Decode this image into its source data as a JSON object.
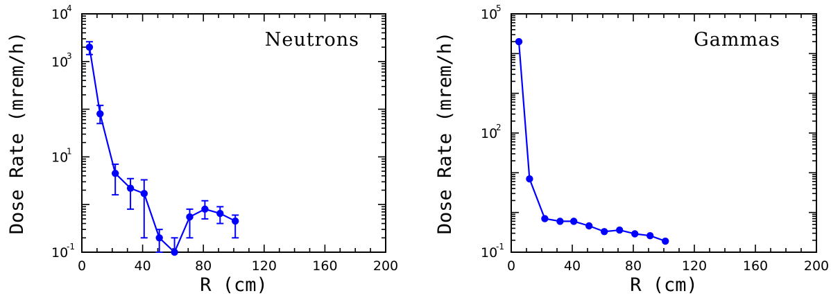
{
  "chart_data": [
    {
      "type": "line",
      "title": "Neutrons",
      "xlabel": "R (cm)",
      "ylabel": "Dose Rate (mrem/h)",
      "xlim": [
        0,
        200
      ],
      "ylim": [
        0.1,
        10000
      ],
      "yscale": "log",
      "x_ticks": [
        "0",
        "40",
        "80",
        "120",
        "160",
        "200"
      ],
      "y_ticks": [
        {
          "base": "10",
          "exp": "-1"
        },
        {
          "base": "10",
          "exp": "1"
        },
        {
          "base": "10",
          "exp": "3"
        },
        {
          "base": "10",
          "exp": "4"
        }
      ],
      "color": "#0000ff",
      "grid": false,
      "series": [
        {
          "x": [
            5,
            12,
            22,
            32,
            41,
            51,
            61,
            71,
            81,
            91,
            101
          ],
          "y": [
            2000,
            80,
            4.5,
            2.2,
            1.7,
            0.2,
            0.1,
            0.55,
            0.8,
            0.65,
            0.45
          ],
          "err_low": [
            1400,
            50,
            1.6,
            0.8,
            0.2,
            0.1,
            0.1,
            0.2,
            0.5,
            0.4,
            0.2
          ],
          "err_high": [
            2600,
            120,
            7.0,
            3.5,
            3.3,
            0.3,
            0.2,
            0.8,
            1.2,
            0.9,
            0.6
          ]
        }
      ]
    },
    {
      "type": "line",
      "title": "Gammas",
      "xlabel": "R (cm)",
      "ylabel": "Dose Rate (mrem/h)",
      "xlim": [
        0,
        200
      ],
      "ylim": [
        0.1,
        100000
      ],
      "yscale": "log",
      "x_ticks": [
        "0",
        "40",
        "80",
        "120",
        "160",
        "200"
      ],
      "y_ticks": [
        {
          "base": "10",
          "exp": "-1"
        },
        {
          "base": "10",
          "exp": "2"
        },
        {
          "base": "10",
          "exp": "5"
        }
      ],
      "color": "#0000ff",
      "grid": false,
      "series": [
        {
          "x": [
            5,
            12,
            22,
            32,
            41,
            51,
            61,
            71,
            81,
            91,
            101
          ],
          "y": [
            20000,
            7,
            0.7,
            0.6,
            0.6,
            0.46,
            0.33,
            0.36,
            0.29,
            0.26,
            0.19
          ]
        }
      ]
    }
  ]
}
